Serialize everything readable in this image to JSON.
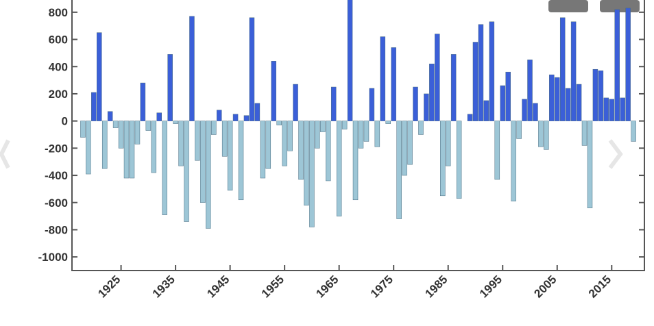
{
  "chart_data": {
    "type": "bar",
    "x": [
      1918,
      1919,
      1920,
      1921,
      1922,
      1923,
      1924,
      1925,
      1926,
      1927,
      1928,
      1929,
      1930,
      1931,
      1932,
      1933,
      1934,
      1935,
      1936,
      1937,
      1938,
      1939,
      1940,
      1941,
      1942,
      1943,
      1944,
      1945,
      1946,
      1947,
      1948,
      1949,
      1950,
      1951,
      1952,
      1953,
      1954,
      1955,
      1956,
      1957,
      1958,
      1959,
      1960,
      1961,
      1962,
      1963,
      1964,
      1965,
      1966,
      1967,
      1968,
      1969,
      1970,
      1971,
      1972,
      1973,
      1974,
      1975,
      1976,
      1977,
      1978,
      1979,
      1980,
      1981,
      1982,
      1983,
      1984,
      1985,
      1986,
      1987,
      1988,
      1989,
      1990,
      1991,
      1992,
      1993,
      1994,
      1995,
      1996,
      1997,
      1998,
      1999,
      2000,
      2001,
      2002,
      2003,
      2004,
      2005,
      2006,
      2007,
      2008,
      2009,
      2010,
      2011,
      2012,
      2013,
      2014,
      2015,
      2016,
      2017,
      2018,
      2019
    ],
    "values": [
      -120,
      -390,
      210,
      650,
      -350,
      70,
      -50,
      -200,
      -420,
      -420,
      -170,
      280,
      -70,
      -380,
      60,
      -690,
      490,
      -20,
      -330,
      -740,
      770,
      -290,
      -600,
      -790,
      -100,
      80,
      -260,
      -510,
      50,
      -580,
      40,
      760,
      130,
      -420,
      -350,
      440,
      -30,
      -330,
      -220,
      270,
      -430,
      -620,
      -780,
      -200,
      -80,
      -440,
      250,
      -700,
      -60,
      900,
      -580,
      -200,
      -150,
      240,
      -190,
      620,
      -20,
      540,
      -720,
      -400,
      -320,
      250,
      -100,
      200,
      420,
      640,
      -550,
      -330,
      490,
      -570,
      0,
      50,
      580,
      710,
      150,
      730,
      -430,
      260,
      360,
      -590,
      -130,
      160,
      450,
      130,
      -190,
      -210,
      340,
      320,
      760,
      240,
      730,
      270,
      -180,
      -640,
      380,
      370,
      170,
      160,
      820,
      170,
      830,
      -150
    ],
    "positive_color": "#3b5fd8",
    "negative_color": "#9dc6d6",
    "xlim": [
      1916,
      2021
    ],
    "xticks": [
      1925,
      1935,
      1945,
      1955,
      1965,
      1975,
      1985,
      1995,
      2005,
      2015
    ],
    "ylim": [
      -1100,
      900
    ],
    "yticks": [
      -1000,
      -800,
      -600,
      -400,
      -200,
      0,
      200,
      400,
      600,
      800
    ]
  }
}
